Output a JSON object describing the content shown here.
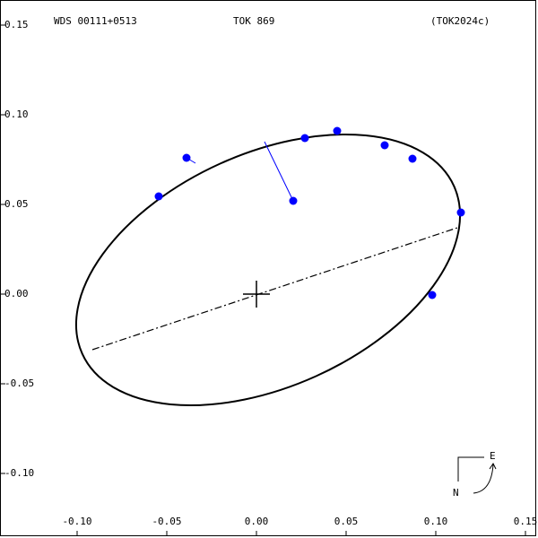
{
  "chart_data": {
    "type": "scatter",
    "title": "TOK 869",
    "subtitle": "WDS 00111+0513",
    "reference": "(TOK2024c)",
    "compass": {
      "east": "E",
      "north": "N"
    },
    "xlim": [
      -0.143,
      0.156
    ],
    "ylim": [
      -0.135,
      0.164
    ],
    "xticks": [
      {
        "value": -0.1,
        "label": "-0.10"
      },
      -0.05,
      {
        "value": 0,
        "label": "0.00"
      },
      0.05,
      {
        "value": 0.1,
        "label": "0.10"
      },
      0.15
    ],
    "yticks": [
      0.15,
      {
        "value": 0.1,
        "label": "0.10"
      },
      0.05,
      {
        "value": 0,
        "label": "0.00"
      },
      -0.05,
      {
        "value": -0.1,
        "label": "-0.10"
      }
    ],
    "color": "#0000ff",
    "x": [
      -0.0545,
      -0.039,
      0.027,
      0.045,
      0.0715,
      0.087,
      0.114,
      0.098,
      0.0205
    ],
    "values": [
      0.0545,
      0.076,
      0.087,
      0.091,
      0.083,
      0.0755,
      0.0455,
      -0.0005,
      0.052
    ],
    "residual_x": [
      null,
      -0.034,
      null,
      null,
      null,
      null,
      null,
      null,
      0.0045
    ],
    "residual_y": [
      null,
      0.073,
      null,
      null,
      null,
      null,
      null,
      null,
      0.085
    ],
    "orbit": {
      "center": [
        0.0065,
        0.0135
      ],
      "semi_major": 0.1137,
      "semi_minor": 0.065,
      "angle": 24.3
    },
    "line_of_nodes": {
      "x": [
        -0.0915,
        0.112
      ],
      "y": [
        -0.031,
        0.037
      ]
    },
    "primary": [
      0,
      0
    ]
  }
}
